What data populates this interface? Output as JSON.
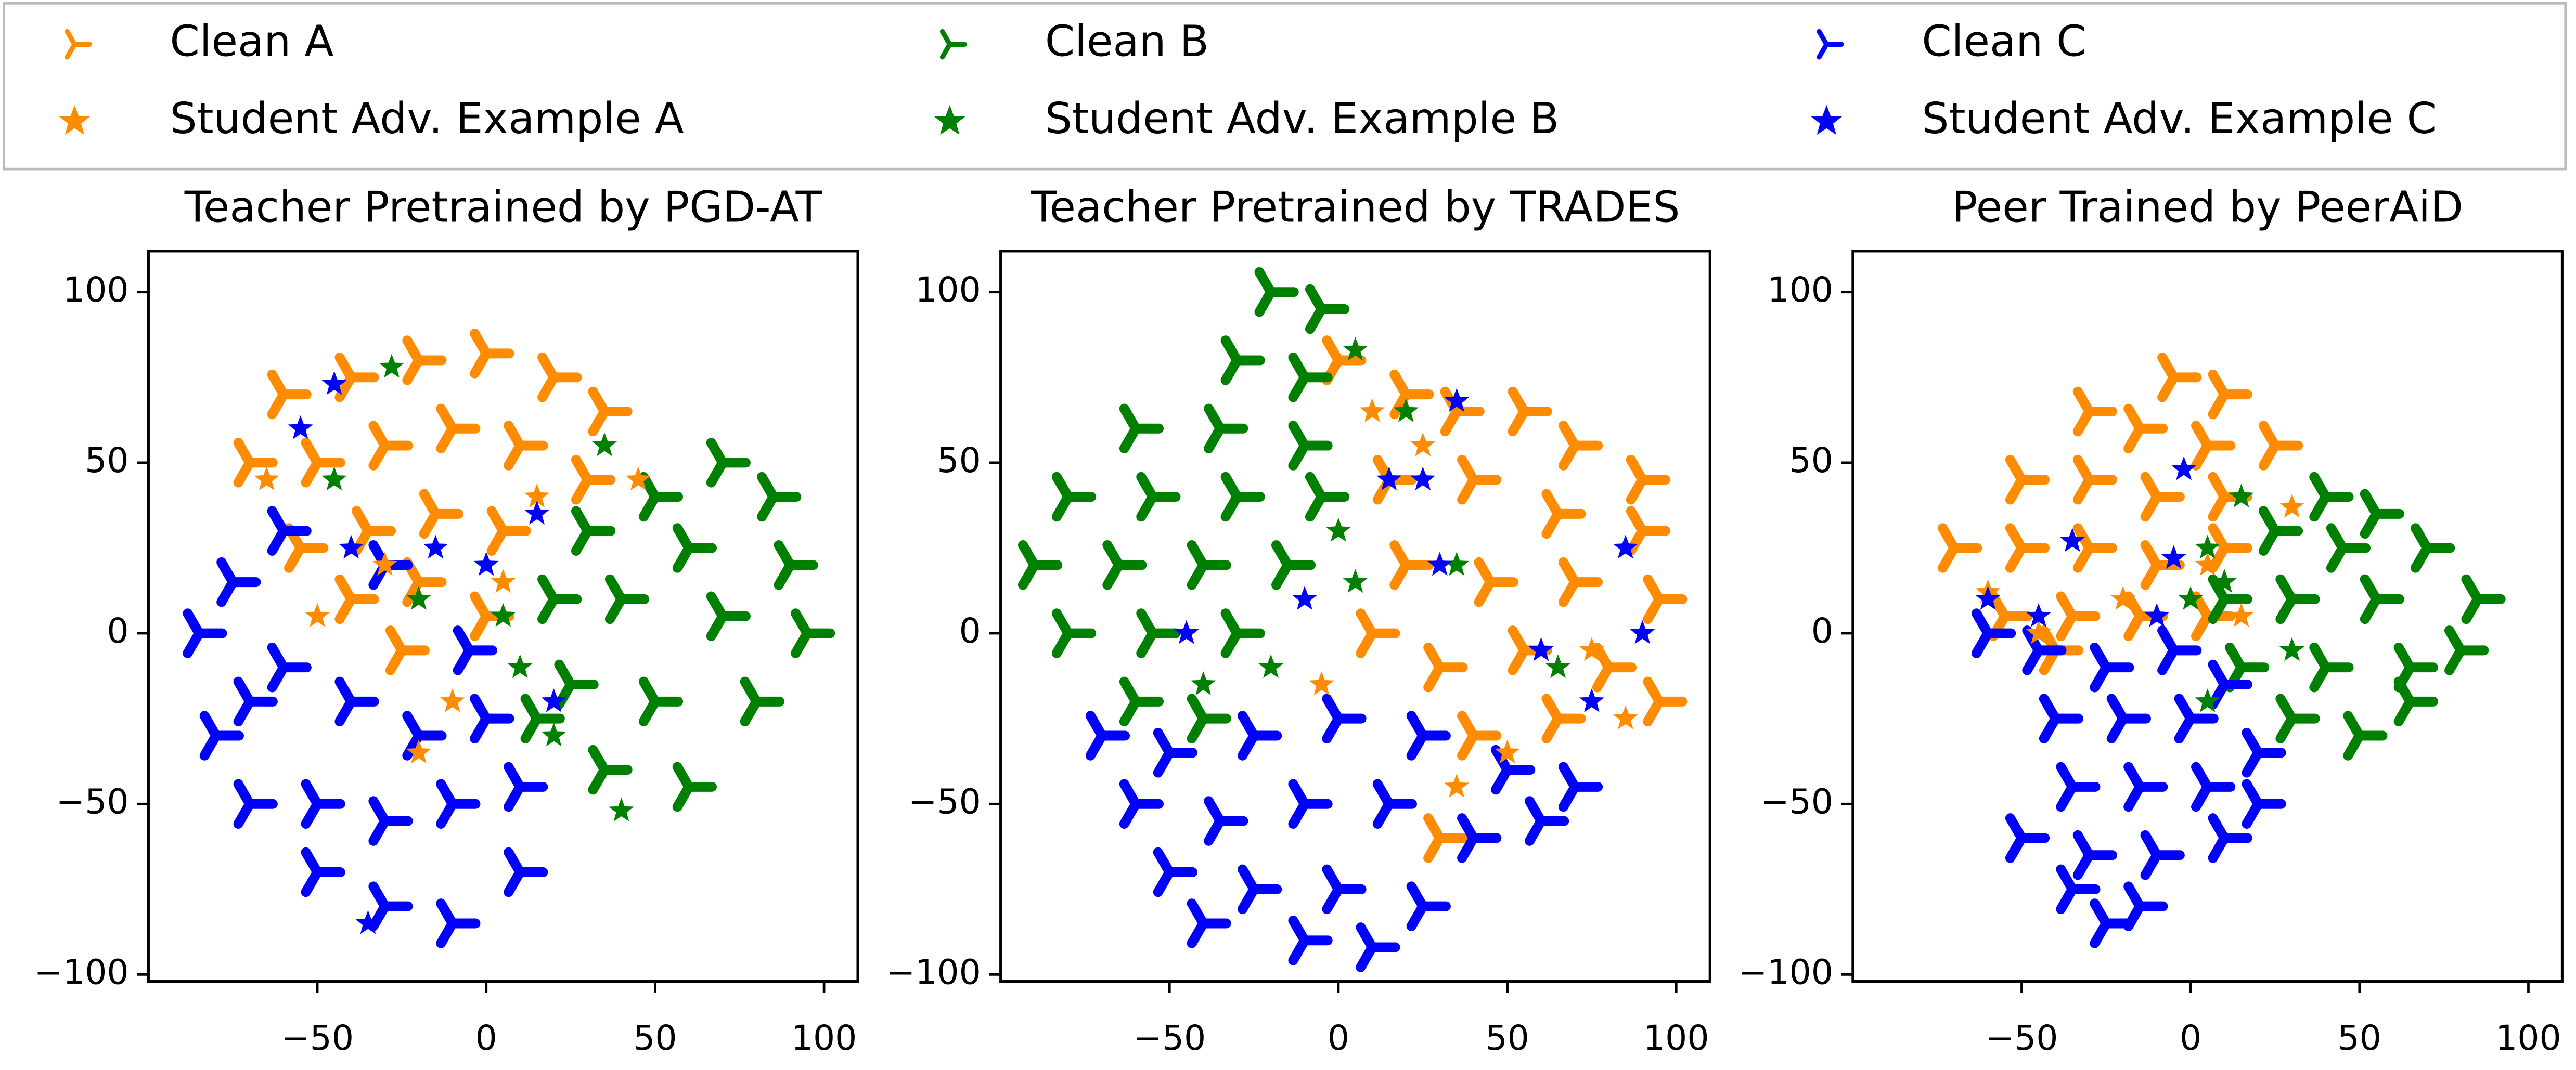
{
  "chart_data": [
    {
      "type": "scatter",
      "title": "Teacher Pretrained by PGD-AT",
      "xlim": [
        -100,
        110
      ],
      "ylim": [
        -102,
        112
      ],
      "xticks": [
        {
          "value": -50,
          "label": "−50"
        },
        0,
        50,
        100
      ],
      "yticks": [
        {
          "value": -100,
          "label": "−100"
        },
        {
          "value": -50,
          "label": "−50"
        },
        0,
        50,
        100
      ],
      "series": [
        {
          "name": "Clean A",
          "color": "#ff8c00",
          "marker": "tri",
          "x": [
            -60,
            -40,
            -20,
            0,
            20,
            35,
            -70,
            -50,
            -30,
            -10,
            10,
            30,
            -55,
            -35,
            -15,
            5,
            -40,
            -20,
            0,
            -25
          ],
          "y": [
            70,
            75,
            80,
            82,
            75,
            65,
            50,
            50,
            55,
            60,
            55,
            45,
            25,
            30,
            35,
            30,
            10,
            15,
            5,
            -5
          ]
        },
        {
          "name": "Student Adv. Example A",
          "color": "#ff8c00",
          "marker": "star",
          "x": [
            -65,
            -30,
            -10,
            15,
            -50,
            5,
            -20,
            45
          ],
          "y": [
            45,
            20,
            -20,
            40,
            5,
            15,
            -35,
            45
          ]
        },
        {
          "name": "Clean B",
          "color": "#008000",
          "marker": "tri",
          "x": [
            70,
            85,
            50,
            30,
            60,
            90,
            20,
            40,
            70,
            95,
            25,
            50,
            80,
            35,
            60,
            15
          ],
          "y": [
            50,
            40,
            40,
            30,
            25,
            20,
            10,
            10,
            5,
            0,
            -15,
            -20,
            -20,
            -40,
            -45,
            -25
          ]
        },
        {
          "name": "Student Adv. Example B",
          "color": "#008000",
          "marker": "star",
          "x": [
            -28,
            -45,
            35,
            10,
            -20,
            40,
            20,
            5
          ],
          "y": [
            78,
            45,
            55,
            -10,
            10,
            -52,
            -30,
            5
          ]
        },
        {
          "name": "Clean C",
          "color": "#0000ff",
          "marker": "tri",
          "x": [
            -85,
            -70,
            -80,
            -60,
            -40,
            -20,
            0,
            -70,
            -50,
            -30,
            -10,
            10,
            -50,
            -30,
            -10,
            10,
            -60,
            -30,
            -75,
            -5
          ],
          "y": [
            0,
            -20,
            -30,
            -10,
            -20,
            -30,
            -25,
            -50,
            -50,
            -55,
            -50,
            -45,
            -70,
            -80,
            -85,
            -70,
            30,
            20,
            15,
            -5
          ]
        },
        {
          "name": "Student Adv. Example C",
          "color": "#0000ff",
          "marker": "star",
          "x": [
            -45,
            -55,
            -40,
            -15,
            0,
            15,
            20,
            -35
          ],
          "y": [
            73,
            60,
            25,
            25,
            20,
            35,
            -20,
            -85
          ]
        }
      ]
    },
    {
      "type": "scatter",
      "title": "Teacher Pretrained by TRADES",
      "xlim": [
        -100,
        110
      ],
      "ylim": [
        -102,
        112
      ],
      "xticks": [
        {
          "value": -50,
          "label": "−50"
        },
        0,
        50,
        100
      ],
      "yticks": [
        {
          "value": -100,
          "label": "−100"
        },
        {
          "value": -50,
          "label": "−50"
        },
        0,
        50,
        100
      ],
      "series": [
        {
          "name": "Clean A",
          "color": "#ff8c00",
          "marker": "tri",
          "x": [
            0,
            20,
            35,
            55,
            70,
            90,
            15,
            40,
            65,
            90,
            20,
            45,
            70,
            95,
            10,
            30,
            55,
            80,
            95,
            40,
            65,
            30
          ],
          "y": [
            80,
            70,
            65,
            65,
            55,
            45,
            45,
            45,
            35,
            30,
            20,
            15,
            15,
            10,
            0,
            -10,
            -5,
            -10,
            -20,
            -30,
            -25,
            -60
          ]
        },
        {
          "name": "Student Adv. Example A",
          "color": "#ff8c00",
          "marker": "star",
          "x": [
            10,
            25,
            -5,
            50,
            75,
            0,
            35,
            85
          ],
          "y": [
            65,
            55,
            -15,
            -35,
            -5,
            30,
            -45,
            -25
          ]
        },
        {
          "name": "Clean B",
          "color": "#008000",
          "marker": "tri",
          "x": [
            -20,
            -5,
            -30,
            -10,
            -60,
            -35,
            -10,
            -80,
            -55,
            -30,
            -5,
            -90,
            -65,
            -40,
            -15,
            -80,
            -55,
            -30,
            -60,
            -40
          ],
          "y": [
            100,
            95,
            80,
            75,
            60,
            60,
            55,
            40,
            40,
            40,
            40,
            20,
            20,
            20,
            20,
            0,
            0,
            0,
            -20,
            -25
          ]
        },
        {
          "name": "Student Adv. Example B",
          "color": "#008000",
          "marker": "star",
          "x": [
            5,
            20,
            0,
            5,
            -20,
            35,
            65,
            -40
          ],
          "y": [
            83,
            65,
            30,
            15,
            -10,
            20,
            -10,
            -15
          ]
        },
        {
          "name": "Clean C",
          "color": "#0000ff",
          "marker": "tri",
          "x": [
            -70,
            -50,
            -25,
            0,
            25,
            50,
            70,
            -60,
            -35,
            -10,
            15,
            40,
            60,
            -50,
            -25,
            0,
            25,
            -10,
            10,
            -40
          ],
          "y": [
            -30,
            -35,
            -30,
            -25,
            -30,
            -40,
            -45,
            -50,
            -55,
            -50,
            -50,
            -60,
            -55,
            -70,
            -75,
            -75,
            -80,
            -90,
            -92,
            -85
          ]
        },
        {
          "name": "Student Adv. Example C",
          "color": "#0000ff",
          "marker": "star",
          "x": [
            15,
            25,
            30,
            35,
            -45,
            60,
            90,
            -10,
            85,
            75
          ],
          "y": [
            45,
            45,
            20,
            68,
            0,
            -5,
            0,
            10,
            25,
            -20
          ]
        }
      ]
    },
    {
      "type": "scatter",
      "title": "Peer Trained by PeerAiD",
      "xlim": [
        -100,
        110
      ],
      "ylim": [
        -102,
        112
      ],
      "xticks": [
        {
          "value": -50,
          "label": "−50"
        },
        0,
        50,
        100
      ],
      "yticks": [
        {
          "value": -100,
          "label": "−100"
        },
        {
          "value": -50,
          "label": "−50"
        },
        0,
        50,
        100
      ],
      "series": [
        {
          "name": "Clean A",
          "color": "#ff8c00",
          "marker": "tri",
          "x": [
            -5,
            10,
            -30,
            -15,
            5,
            25,
            -50,
            -30,
            -10,
            10,
            -70,
            -50,
            -30,
            -10,
            10,
            -55,
            -35,
            -15,
            5,
            -40
          ],
          "y": [
            75,
            70,
            65,
            60,
            55,
            55,
            45,
            45,
            40,
            40,
            25,
            25,
            25,
            20,
            25,
            5,
            5,
            5,
            5,
            -5
          ]
        },
        {
          "name": "Student Adv. Example A",
          "color": "#ff8c00",
          "marker": "star",
          "x": [
            30,
            -60,
            -20,
            5,
            -45,
            15
          ],
          "y": [
            37,
            12,
            10,
            20,
            0,
            5
          ]
        },
        {
          "name": "Clean B",
          "color": "#008000",
          "marker": "tri",
          "x": [
            40,
            55,
            25,
            45,
            70,
            10,
            30,
            55,
            85,
            15,
            40,
            65,
            80,
            30,
            50,
            65
          ],
          "y": [
            40,
            35,
            30,
            25,
            25,
            10,
            10,
            10,
            10,
            -10,
            -10,
            -10,
            -5,
            -25,
            -30,
            -20
          ]
        },
        {
          "name": "Student Adv. Example B",
          "color": "#008000",
          "marker": "star",
          "x": [
            15,
            5,
            0,
            5,
            10,
            30
          ],
          "y": [
            40,
            25,
            10,
            -20,
            15,
            -5
          ]
        },
        {
          "name": "Clean C",
          "color": "#0000ff",
          "marker": "tri",
          "x": [
            -60,
            -45,
            -25,
            -5,
            10,
            -40,
            -20,
            0,
            20,
            -35,
            -15,
            5,
            20,
            -50,
            -30,
            -10,
            10,
            -35,
            -15,
            -25
          ],
          "y": [
            0,
            -5,
            -10,
            -5,
            -15,
            -25,
            -25,
            -25,
            -35,
            -45,
            -45,
            -45,
            -50,
            -60,
            -65,
            -65,
            -60,
            -75,
            -80,
            -85
          ]
        },
        {
          "name": "Student Adv. Example C",
          "color": "#0000ff",
          "marker": "star",
          "x": [
            -35,
            -2,
            -5,
            -60,
            -45,
            -10
          ],
          "y": [
            27,
            48,
            22,
            10,
            5,
            5
          ]
        }
      ]
    }
  ]
}
